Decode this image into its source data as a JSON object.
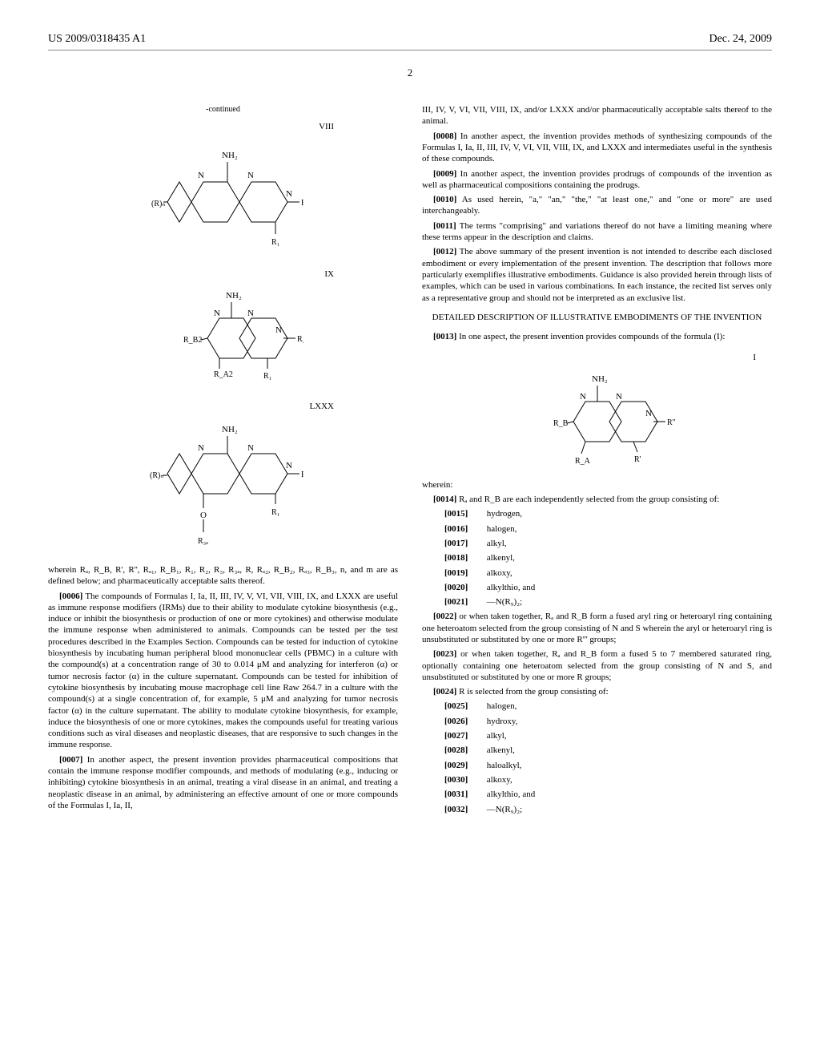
{
  "header": {
    "pub_num": "US 2009/0318435 A1",
    "date": "Dec. 24, 2009"
  },
  "page_num": "2",
  "left_col": {
    "continued_label": "-continued",
    "structs": [
      {
        "label": "VIII",
        "R_left": "(R)",
        "R_sub": "n",
        "R_right": "R₂",
        "R_bottom": "R₁",
        "top": "NH₂",
        "ring_sub1": "",
        "ring_sub2": ""
      },
      {
        "label": "IX",
        "R_left": "R",
        "R_sub_b2": "B2",
        "R_right": "R₂",
        "R_bottom": "R₁",
        "R_a2": "A2",
        "top": "NH₂"
      },
      {
        "label": "LXXX",
        "R_left": "(R)",
        "R_sub": "n",
        "R_right": "R₂",
        "R_bottom": "R₁",
        "R_o": "O",
        "R_3a": "R",
        "R_3a_sub": "3a",
        "top": "NH₂"
      }
    ],
    "wherein": "wherein Rₐ, R_B, R', R'', Rₐ₁, R_B₁, R₁, R₂, R₃, R₃ₐ, R, Rₐ₂, R_B₂, Rₐ₃, R_B₃, n, and m are as defined below; and pharmaceutically acceptable salts thereof.",
    "p0006_num": "[0006]",
    "p0006": "The compounds of Formulas I, Ia, II, III, IV, V, VI, VII, VIII, IX, and LXXX are useful as immune response modifiers (IRMs) due to their ability to modulate cytokine biosynthesis (e.g., induce or inhibit the biosynthesis or production of one or more cytokines) and otherwise modulate the immune response when administered to animals. Compounds can be tested per the test procedures described in the Examples Section. Compounds can be tested for induction of cytokine biosynthesis by incubating human peripheral blood mononuclear cells (PBMC) in a culture with the compound(s) at a concentration range of 30 to 0.014 μM and analyzing for interferon (α) or tumor necrosis factor (α) in the culture supernatant. Compounds can be tested for inhibition of cytokine biosynthesis by incubating mouse macrophage cell line Raw 264.7 in a culture with the compound(s) at a single concentration of, for example, 5 μM and analyzing for tumor necrosis factor (α) in the culture supernatant. The ability to modulate cytokine biosynthesis, for example, induce the biosynthesis of one or more cytokines, makes the compounds useful for treating various conditions such as viral diseases and neoplastic diseases, that are responsive to such changes in the immune response.",
    "p0007_num": "[0007]",
    "p0007": "In another aspect, the present invention provides pharmaceutical compositions that contain the immune response modifier compounds, and methods of modulating (e.g., inducing or inhibiting) cytokine biosynthesis in an animal, treating a viral disease in an animal, and treating a neoplastic disease in an animal, by administering an effective amount of one or more compounds of the Formulas I, Ia, II,"
  },
  "right_col": {
    "p0007_cont": "III, IV, V, VI, VII, VIII, IX, and/or LXXX and/or pharmaceutically acceptable salts thereof to the animal.",
    "p0008_num": "[0008]",
    "p0008": "In another aspect, the invention provides methods of synthesizing compounds of the Formulas I, Ia, II, III, IV, V, VI, VII, VIII, IX, and LXXX and intermediates useful in the synthesis of these compounds.",
    "p0009_num": "[0009]",
    "p0009": "In another aspect, the invention provides prodrugs of compounds of the invention as well as pharmaceutical compositions containing the prodrugs.",
    "p0010_num": "[0010]",
    "p0010": "As used herein, \"a,\" \"an,\" \"the,\" \"at least one,\" and \"one or more\" are used interchangeably.",
    "p0011_num": "[0011]",
    "p0011": "The terms \"comprising\" and variations thereof do not have a limiting meaning where these terms appear in the description and claims.",
    "p0012_num": "[0012]",
    "p0012": "The above summary of the present invention is not intended to describe each disclosed embodiment or every implementation of the present invention. The description that follows more particularly exemplifies illustrative embodiments. Guidance is also provided herein through lists of examples, which can be used in various combinations. In each instance, the recited list serves only as a representative group and should not be interpreted as an exclusive list.",
    "section_title": "DETAILED DESCRIPTION OF ILLUSTRATIVE EMBODIMENTS OF THE INVENTION",
    "p0013_num": "[0013]",
    "p0013": "In one aspect, the present invention provides compounds of the formula (I):",
    "struct_I_label": "I",
    "struct_I": {
      "top": "NH₂",
      "R_left": "R",
      "R_left_sub": "B",
      "R_right": "R''",
      "R_bottom_l": "R",
      "R_bottom_l_sub": "A",
      "R_bottom_r": "R'"
    },
    "wherein_label": "wherein:",
    "p0014_num": "[0014]",
    "p0014": "Rₐ and R_B are each independently selected from the group consisting of:",
    "list1": [
      {
        "num": "[0015]",
        "text": "hydrogen,"
      },
      {
        "num": "[0016]",
        "text": "halogen,"
      },
      {
        "num": "[0017]",
        "text": "alkyl,"
      },
      {
        "num": "[0018]",
        "text": "alkenyl,"
      },
      {
        "num": "[0019]",
        "text": "alkoxy,"
      },
      {
        "num": "[0020]",
        "text": "alkylthio, and"
      },
      {
        "num": "[0021]",
        "text": "—N(R₉)₂;"
      }
    ],
    "p0022_num": "[0022]",
    "p0022": "or when taken together, Rₐ and R_B form a fused aryl ring or heteroaryl ring containing one heteroatom selected from the group consisting of N and S wherein the aryl or heteroaryl ring is unsubstituted or substituted by one or more R''' groups;",
    "p0023_num": "[0023]",
    "p0023": "or when taken together, Rₐ and R_B form a fused 5 to 7 membered saturated ring, optionally containing one heteroatom selected from the group consisting of N and S, and unsubstituted or substituted by one or more R groups;",
    "p0024_num": "[0024]",
    "p0024": "R is selected from the group consisting of:",
    "list2": [
      {
        "num": "[0025]",
        "text": "halogen,"
      },
      {
        "num": "[0026]",
        "text": "hydroxy,"
      },
      {
        "num": "[0027]",
        "text": "alkyl,"
      },
      {
        "num": "[0028]",
        "text": "alkenyl,"
      },
      {
        "num": "[0029]",
        "text": "haloalkyl,"
      },
      {
        "num": "[0030]",
        "text": "alkoxy,"
      },
      {
        "num": "[0031]",
        "text": "alkylthio, and"
      },
      {
        "num": "[0032]",
        "text": "—N(R₉)₂;"
      }
    ]
  }
}
